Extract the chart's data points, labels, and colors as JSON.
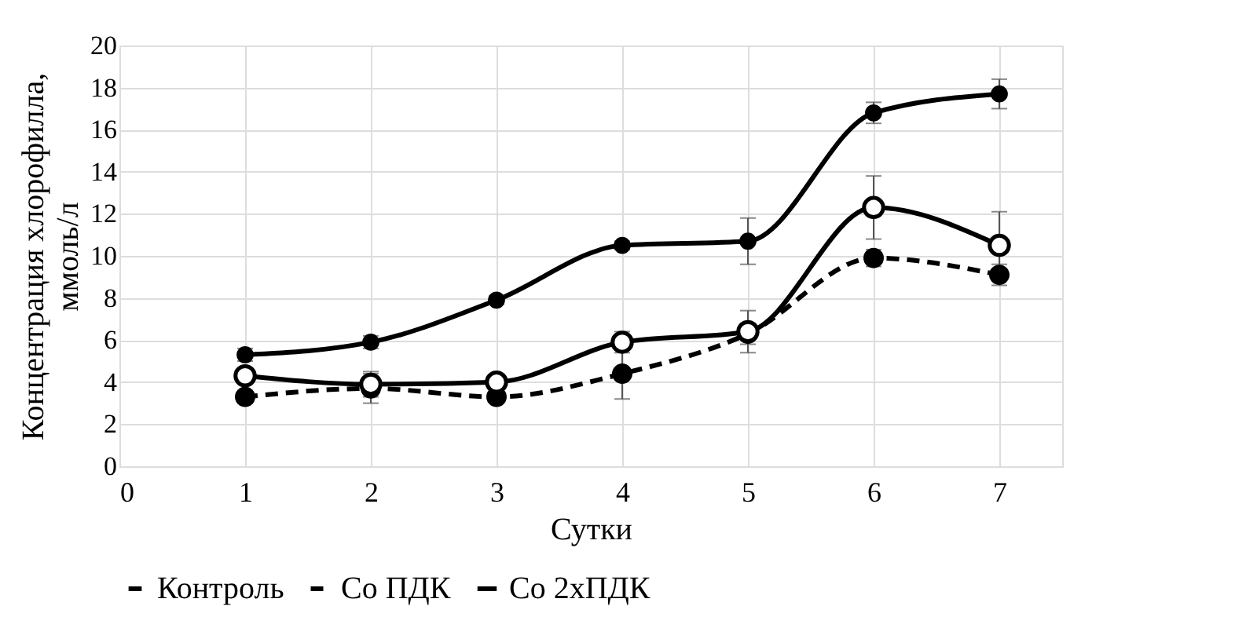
{
  "chart_data": {
    "type": "line",
    "xlabel": "Сутки",
    "ylabel": "Концентрация хлорофилла, ммоль/л",
    "x": [
      1,
      2,
      3,
      4,
      5,
      6,
      7
    ],
    "xlim": [
      0,
      7.5
    ],
    "xticks": [
      0,
      1,
      2,
      3,
      4,
      5,
      6,
      7
    ],
    "ylim": [
      0,
      20
    ],
    "yticks": [
      0,
      2,
      4,
      6,
      8,
      10,
      12,
      14,
      16,
      18,
      20
    ],
    "grid": true,
    "legend": "bottom",
    "marker": "circle",
    "series": [
      {
        "name": "Контроль",
        "color": "#000000",
        "line_style": "solid",
        "values": [
          5.3,
          5.9,
          7.9,
          10.5,
          10.7,
          16.8,
          17.7
        ],
        "errors": [
          0.3,
          0.3,
          0.2,
          0.2,
          1.1,
          0.5,
          0.7
        ]
      },
      {
        "name": "Co ПДК",
        "color": "#000000",
        "line_style": "dashed",
        "values": [
          3.3,
          3.7,
          3.3,
          4.4,
          6.3,
          9.9,
          9.1
        ],
        "errors": [
          0.3,
          0.7,
          0.2,
          1.2,
          0.5,
          0.4,
          0.5
        ]
      },
      {
        "name": "Co 2хПДК",
        "color": "#000000",
        "line_style": "solid",
        "values": [
          4.3,
          3.9,
          4.0,
          5.9,
          6.4,
          12.3,
          10.5
        ],
        "errors": [
          0.3,
          0.6,
          0.3,
          0.5,
          1.0,
          1.5,
          1.6
        ]
      }
    ]
  }
}
